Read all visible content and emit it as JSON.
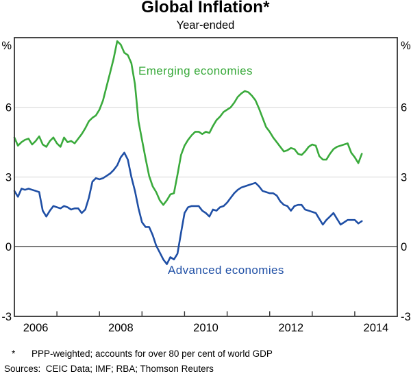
{
  "header": {
    "title": "Global Inflation*",
    "subtitle": "Year-ended"
  },
  "series_labels": {
    "emerging": "Emerging economies",
    "advanced": "Advanced economies"
  },
  "footnotes": {
    "star": "*",
    "note": "PPP-weighted; accounts for over 80 per cent of world GDP",
    "sources": "Sources:  CEIC Data; IMF; RBA; Thomson Reuters"
  },
  "chart_data": {
    "type": "line",
    "title": "Global Inflation*",
    "subtitle": "Year-ended",
    "unit_label": "%",
    "ylim": [
      -3,
      9
    ],
    "yticks": [
      6,
      3,
      0,
      -3
    ],
    "ytick_labels": [
      "6",
      "3",
      "0",
      "-3"
    ],
    "gridlines": [
      6,
      3
    ],
    "zero_line_value": 0,
    "xlim": [
      2006,
      2015
    ],
    "x_monthly_start": 2006.0,
    "xtick_years": [
      2007,
      2008,
      2009,
      2010,
      2011,
      2012,
      2013,
      2014
    ],
    "xlabel_years": [
      2006,
      2008,
      2010,
      2012,
      2014
    ],
    "xlabel_texts": [
      "2006",
      "2008",
      "2010",
      "2012",
      "2014"
    ],
    "legend_position": "inline-labels",
    "grid": "horizontal-only",
    "colors": {
      "grid": "#d4d4d4",
      "zero_line": "#4d4d4d",
      "frame": "#333333",
      "tick": "#333333",
      "axis_text": "#000000"
    },
    "series": [
      {
        "name": "Emerging economies",
        "color": "#3aaa3c",
        "frequency": "monthly",
        "values": [
          4.7,
          4.35,
          4.5,
          4.6,
          4.65,
          4.4,
          4.55,
          4.75,
          4.4,
          4.3,
          4.55,
          4.7,
          4.45,
          4.3,
          4.7,
          4.5,
          4.55,
          4.45,
          4.65,
          4.85,
          5.1,
          5.4,
          5.55,
          5.65,
          5.9,
          6.3,
          6.9,
          7.5,
          8.1,
          8.85,
          8.7,
          8.35,
          8.25,
          7.9,
          7.0,
          5.4,
          4.6,
          3.8,
          3.05,
          2.6,
          2.35,
          2.0,
          1.8,
          2.0,
          2.25,
          2.3,
          3.1,
          3.95,
          4.35,
          4.6,
          4.8,
          4.95,
          4.95,
          4.85,
          4.95,
          4.9,
          5.2,
          5.45,
          5.6,
          5.8,
          5.9,
          6.0,
          6.2,
          6.45,
          6.6,
          6.7,
          6.65,
          6.5,
          6.3,
          5.95,
          5.55,
          5.15,
          4.95,
          4.7,
          4.5,
          4.3,
          4.1,
          4.15,
          4.25,
          4.2,
          4.0,
          3.95,
          4.1,
          4.3,
          4.4,
          4.35,
          3.9,
          3.75,
          3.75,
          4.0,
          4.2,
          4.3,
          4.35,
          4.4,
          4.45,
          4.05,
          3.85,
          3.6,
          4.0
        ]
      },
      {
        "name": "Advanced economies",
        "color": "#1f4fa5",
        "frequency": "monthly",
        "values": [
          2.4,
          2.15,
          2.5,
          2.45,
          2.5,
          2.45,
          2.4,
          2.35,
          1.55,
          1.3,
          1.55,
          1.75,
          1.7,
          1.65,
          1.75,
          1.7,
          1.6,
          1.65,
          1.65,
          1.45,
          1.6,
          2.1,
          2.8,
          2.95,
          2.9,
          2.95,
          3.05,
          3.15,
          3.3,
          3.5,
          3.85,
          4.05,
          3.75,
          3.0,
          2.4,
          1.65,
          1.05,
          0.85,
          0.85,
          0.5,
          0.05,
          -0.25,
          -0.55,
          -0.75,
          -0.45,
          -0.55,
          -0.3,
          0.6,
          1.45,
          1.7,
          1.75,
          1.75,
          1.75,
          1.55,
          1.45,
          1.3,
          1.6,
          1.55,
          1.7,
          1.75,
          1.9,
          2.1,
          2.3,
          2.45,
          2.55,
          2.6,
          2.65,
          2.7,
          2.75,
          2.6,
          2.4,
          2.35,
          2.3,
          2.3,
          2.2,
          1.95,
          1.8,
          1.75,
          1.55,
          1.75,
          1.8,
          1.8,
          1.6,
          1.55,
          1.5,
          1.45,
          1.2,
          0.95,
          1.15,
          1.3,
          1.45,
          1.2,
          0.95,
          1.05,
          1.15,
          1.15,
          1.15,
          1.0,
          1.1
        ]
      }
    ]
  }
}
